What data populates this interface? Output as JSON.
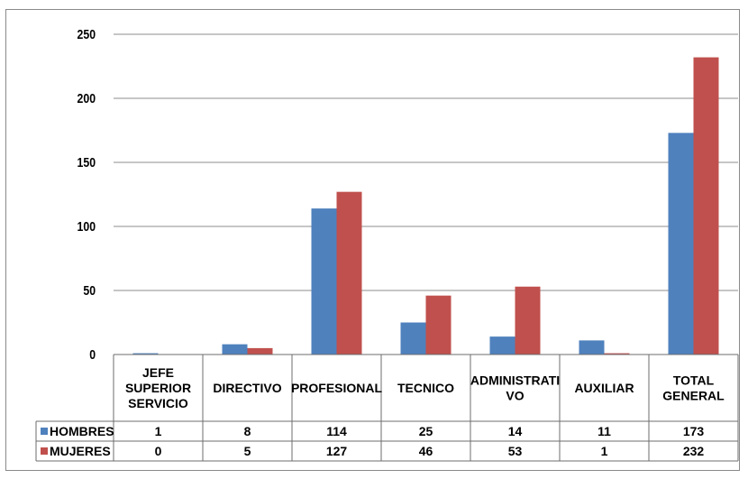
{
  "chart_data": {
    "type": "bar",
    "categories": [
      [
        "JEFE",
        "SUPERIOR",
        "SERVICIO"
      ],
      [
        "DIRECTIVO"
      ],
      [
        "PROFESIONAL"
      ],
      [
        "TECNICO"
      ],
      [
        "ADMINISTRATI",
        "VO"
      ],
      [
        "AUXILIAR"
      ],
      [
        "TOTAL",
        "GENERAL"
      ]
    ],
    "series": [
      {
        "name": "HOMBRES",
        "color": "#4F81BD",
        "values": [
          1,
          8,
          114,
          25,
          14,
          11,
          173
        ]
      },
      {
        "name": "MUJERES",
        "color": "#C0504D",
        "values": [
          0,
          5,
          127,
          46,
          53,
          1,
          232
        ]
      }
    ],
    "ylim": [
      0,
      250
    ],
    "yticks": [
      0,
      50,
      100,
      150,
      200,
      250
    ],
    "grid": true,
    "legend": "data-table",
    "title": "",
    "xlabel": "",
    "ylabel": ""
  }
}
